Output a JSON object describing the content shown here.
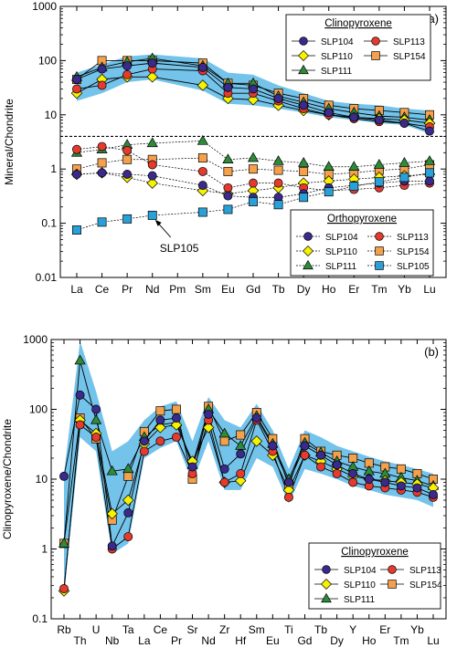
{
  "colors": {
    "band": "#5bb8e6",
    "SLP104": "#3a2a8c",
    "SLP113": "#e53a2e",
    "SLP110": "#f7f200",
    "SLP154": "#f5a04a",
    "SLP111": "#2e8b3a",
    "SLP105": "#2aa0d8"
  },
  "chart_data": [
    {
      "type": "line",
      "panel_label": "(a)",
      "ylabel": "Mineral/Chondrite",
      "yscale": "log",
      "ylim": [
        0.01,
        1000
      ],
      "y_ticks": [
        "0.01",
        "0.1",
        "1",
        "10",
        "100",
        "1000"
      ],
      "categories": [
        "La",
        "Ce",
        "Pr",
        "Nd",
        "Pm",
        "Sm",
        "Eu",
        "Gd",
        "Tb",
        "Dy",
        "Ho",
        "Er",
        "Tm",
        "Yb",
        "Lu"
      ],
      "divider_y": 4,
      "annotation": {
        "text": "SLP105",
        "target_category": "Nd",
        "target_value": 0.14
      },
      "band_upper": [
        60,
        85,
        120,
        130,
        null,
        110,
        60,
        55,
        35,
        25,
        18,
        16,
        15,
        13,
        12
      ],
      "band_lower": [
        18,
        25,
        40,
        45,
        null,
        28,
        16,
        15,
        13,
        11,
        9,
        8,
        7,
        6.5,
        4.5
      ],
      "legend_cpx": {
        "title": "Clinopyroxene",
        "entries": [
          {
            "sample": "SLP104",
            "marker": "circle"
          },
          {
            "sample": "SLP113",
            "marker": "circle"
          },
          {
            "sample": "SLP110",
            "marker": "diamond"
          },
          {
            "sample": "SLP154",
            "marker": "square"
          },
          {
            "sample": "SLP111",
            "marker": "triangle"
          }
        ]
      },
      "legend_opx": {
        "title": "Orthopyroxene",
        "entries": [
          {
            "sample": "SLP104",
            "marker": "circle"
          },
          {
            "sample": "SLP113",
            "marker": "circle"
          },
          {
            "sample": "SLP110",
            "marker": "diamond"
          },
          {
            "sample": "SLP154",
            "marker": "square"
          },
          {
            "sample": "SLP111",
            "marker": "triangle"
          },
          {
            "sample": "SLP105",
            "marker": "square"
          }
        ]
      },
      "series": [
        {
          "name": "SLP104",
          "group": "cpx",
          "marker": "circle",
          "values": [
            45,
            70,
            80,
            90,
            null,
            75,
            32,
            30,
            20,
            15,
            11,
            9,
            8,
            7,
            5
          ]
        },
        {
          "name": "SLP113",
          "group": "cpx",
          "marker": "circle",
          "values": [
            30,
            35,
            55,
            70,
            null,
            65,
            25,
            25,
            18,
            13,
            10,
            8.5,
            7.5,
            7,
            6
          ]
        },
        {
          "name": "SLP110",
          "group": "cpx",
          "marker": "diamond",
          "values": [
            25,
            45,
            50,
            50,
            null,
            35,
            20,
            19,
            15,
            12,
            10,
            9,
            8.5,
            8,
            7
          ]
        },
        {
          "name": "SLP154",
          "group": "cpx",
          "marker": "square",
          "values": [
            45,
            100,
            100,
            100,
            null,
            90,
            38,
            35,
            25,
            20,
            15,
            13,
            12,
            11,
            10
          ]
        },
        {
          "name": "SLP111",
          "group": "cpx",
          "marker": "triangle",
          "values": [
            50,
            75,
            95,
            110,
            null,
            80,
            38,
            38,
            22,
            17,
            13,
            11,
            9.5,
            9,
            8
          ]
        },
        {
          "name": "SLP104",
          "group": "opx",
          "marker": "circle",
          "values": [
            0.8,
            0.85,
            0.8,
            0.75,
            null,
            0.5,
            0.32,
            0.3,
            0.3,
            0.35,
            0.45,
            0.5,
            0.55,
            0.6,
            0.6
          ]
        },
        {
          "name": "SLP113",
          "group": "opx",
          "marker": "circle",
          "values": [
            2.3,
            2.6,
            2.2,
            1.2,
            null,
            0.9,
            0.45,
            0.55,
            0.55,
            0.45,
            0.4,
            0.42,
            0.45,
            0.5,
            0.55
          ]
        },
        {
          "name": "SLP110",
          "group": "opx",
          "marker": "diamond",
          "values": [
            0.8,
            0.85,
            0.7,
            0.55,
            null,
            0.4,
            0.35,
            0.4,
            0.45,
            0.55,
            0.6,
            0.65,
            0.7,
            0.75,
            0.8
          ]
        },
        {
          "name": "SLP154",
          "group": "opx",
          "marker": "square",
          "values": [
            1.0,
            1.3,
            1.5,
            1.5,
            null,
            1.6,
            0.9,
            1.0,
            0.95,
            0.9,
            0.8,
            0.85,
            0.95,
            1.0,
            1.2
          ]
        },
        {
          "name": "SLP111",
          "group": "opx",
          "marker": "triangle",
          "values": [
            2.0,
            2.3,
            2.8,
            3.0,
            null,
            3.3,
            1.5,
            1.6,
            1.4,
            1.3,
            1.1,
            1.1,
            1.2,
            1.3,
            1.4
          ]
        },
        {
          "name": "SLP105",
          "group": "opx",
          "marker": "square",
          "values": [
            0.075,
            0.105,
            0.12,
            0.14,
            null,
            0.16,
            0.18,
            0.25,
            0.22,
            0.3,
            0.38,
            0.48,
            0.58,
            0.7,
            0.85
          ]
        }
      ]
    },
    {
      "type": "line",
      "panel_label": "(b)",
      "ylabel": "Clinopyroxene/Chondrite",
      "yscale": "log",
      "ylim": [
        0.1,
        1000
      ],
      "y_ticks": [
        "0.1",
        "1",
        "10",
        "100",
        "1000"
      ],
      "categories": [
        "Rb",
        "Th",
        "U",
        "Nb",
        "Ta",
        "La",
        "Ce",
        "Pr",
        "Sr",
        "Nd",
        "Zr",
        "Hf",
        "Sm",
        "Eu",
        "Ti",
        "Gd",
        "Tb",
        "Dy",
        "Y",
        "Ho",
        "Er",
        "Tm",
        "Yb",
        "Lu"
      ],
      "band_upper": [
        12,
        950,
        180,
        25,
        35,
        70,
        110,
        130,
        35,
        150,
        70,
        55,
        120,
        50,
        14,
        50,
        40,
        30,
        25,
        21,
        18,
        16,
        14,
        12
      ],
      "band_lower": [
        0.22,
        40,
        25,
        0.85,
        1.2,
        20,
        28,
        35,
        9,
        35,
        7,
        7,
        20,
        15,
        4.5,
        14,
        12,
        10,
        8,
        7,
        6,
        5.5,
        5,
        4
      ],
      "legend_cpx": {
        "title": "Clinopyroxene",
        "entries": [
          {
            "sample": "SLP104",
            "marker": "circle"
          },
          {
            "sample": "SLP113",
            "marker": "circle"
          },
          {
            "sample": "SLP110",
            "marker": "diamond"
          },
          {
            "sample": "SLP154",
            "marker": "square"
          },
          {
            "sample": "SLP111",
            "marker": "triangle"
          }
        ]
      },
      "series": [
        {
          "name": "SLP104",
          "group": "cpx",
          "marker": "circle",
          "values": [
            11,
            160,
            100,
            1.1,
            3.3,
            35,
            70,
            75,
            15,
            85,
            14,
            23,
            75,
            30,
            9,
            30,
            22,
            16,
            12,
            10,
            9,
            8,
            7.5,
            6
          ]
        },
        {
          "name": "SLP113",
          "group": "cpx",
          "marker": "circle",
          "values": [
            0.27,
            60,
            40,
            1.0,
            1.5,
            25,
            35,
            40,
            12,
            70,
            9,
            12,
            70,
            25,
            5.5,
            22,
            15,
            12,
            9,
            8,
            7.5,
            7,
            6.5,
            5.5
          ]
        },
        {
          "name": "SLP110",
          "group": "cpx",
          "marker": "diamond",
          "values": [
            0.25,
            70,
            45,
            3.2,
            5,
            32,
            55,
            60,
            18,
            55,
            9,
            9.5,
            35,
            22,
            7,
            22,
            18,
            14,
            11,
            10,
            9.5,
            9,
            8.5,
            7.5
          ]
        },
        {
          "name": "SLP154",
          "group": "cpx",
          "marker": "square",
          "values": [
            1.2,
            75,
            38,
            2.6,
            11,
            48,
            95,
            100,
            10,
            110,
            35,
            43,
            90,
            38,
            8,
            38,
            25,
            22,
            20,
            17,
            15,
            14,
            12,
            10
          ]
        },
        {
          "name": "SLP111",
          "group": "cpx",
          "marker": "triangle",
          "values": [
            1.2,
            500,
            70,
            13,
            14,
            40,
            60,
            65,
            16,
            100,
            45,
            30,
            80,
            32,
            10,
            33,
            24,
            18,
            15,
            13,
            12,
            10.5,
            9.5,
            8
          ]
        }
      ]
    }
  ]
}
